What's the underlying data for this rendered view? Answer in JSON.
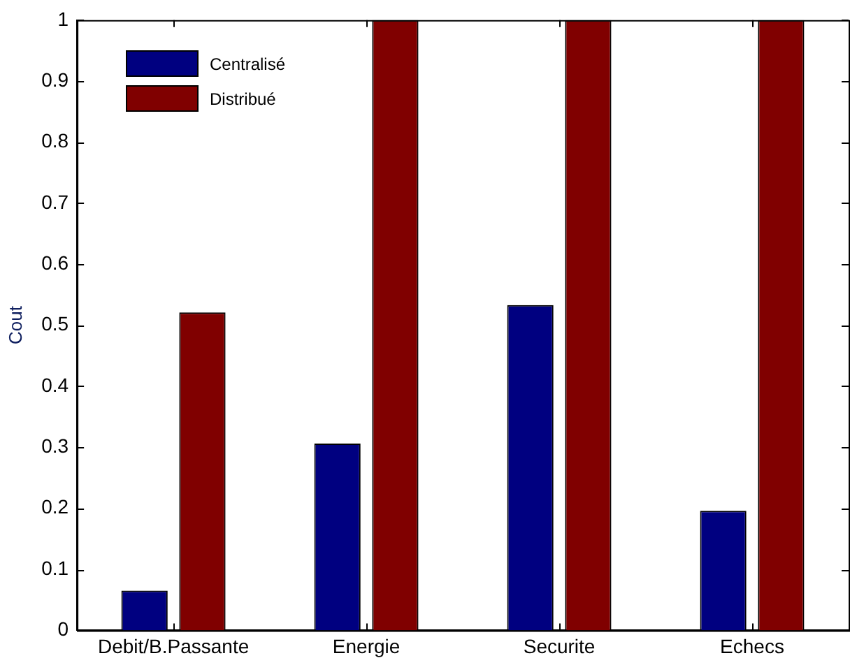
{
  "chart_data": {
    "type": "bar",
    "ylabel": "Cout",
    "categories": [
      "Debit/B.Passante",
      "Energie",
      "Securite",
      "Echecs"
    ],
    "series": [
      {
        "name": "Centralisé",
        "color": "#000080",
        "values": [
          0.065,
          0.306,
          0.533,
          0.196
        ]
      },
      {
        "name": "Distribué",
        "color": "#800000",
        "values": [
          0.521,
          1,
          1,
          1
        ]
      }
    ],
    "ylim": [
      0,
      1
    ],
    "yticks": [
      0,
      0.1,
      0.2,
      0.3,
      0.4,
      0.5,
      0.6,
      0.7,
      0.8,
      0.9,
      1
    ],
    "grid": false,
    "legend": "top left"
  }
}
